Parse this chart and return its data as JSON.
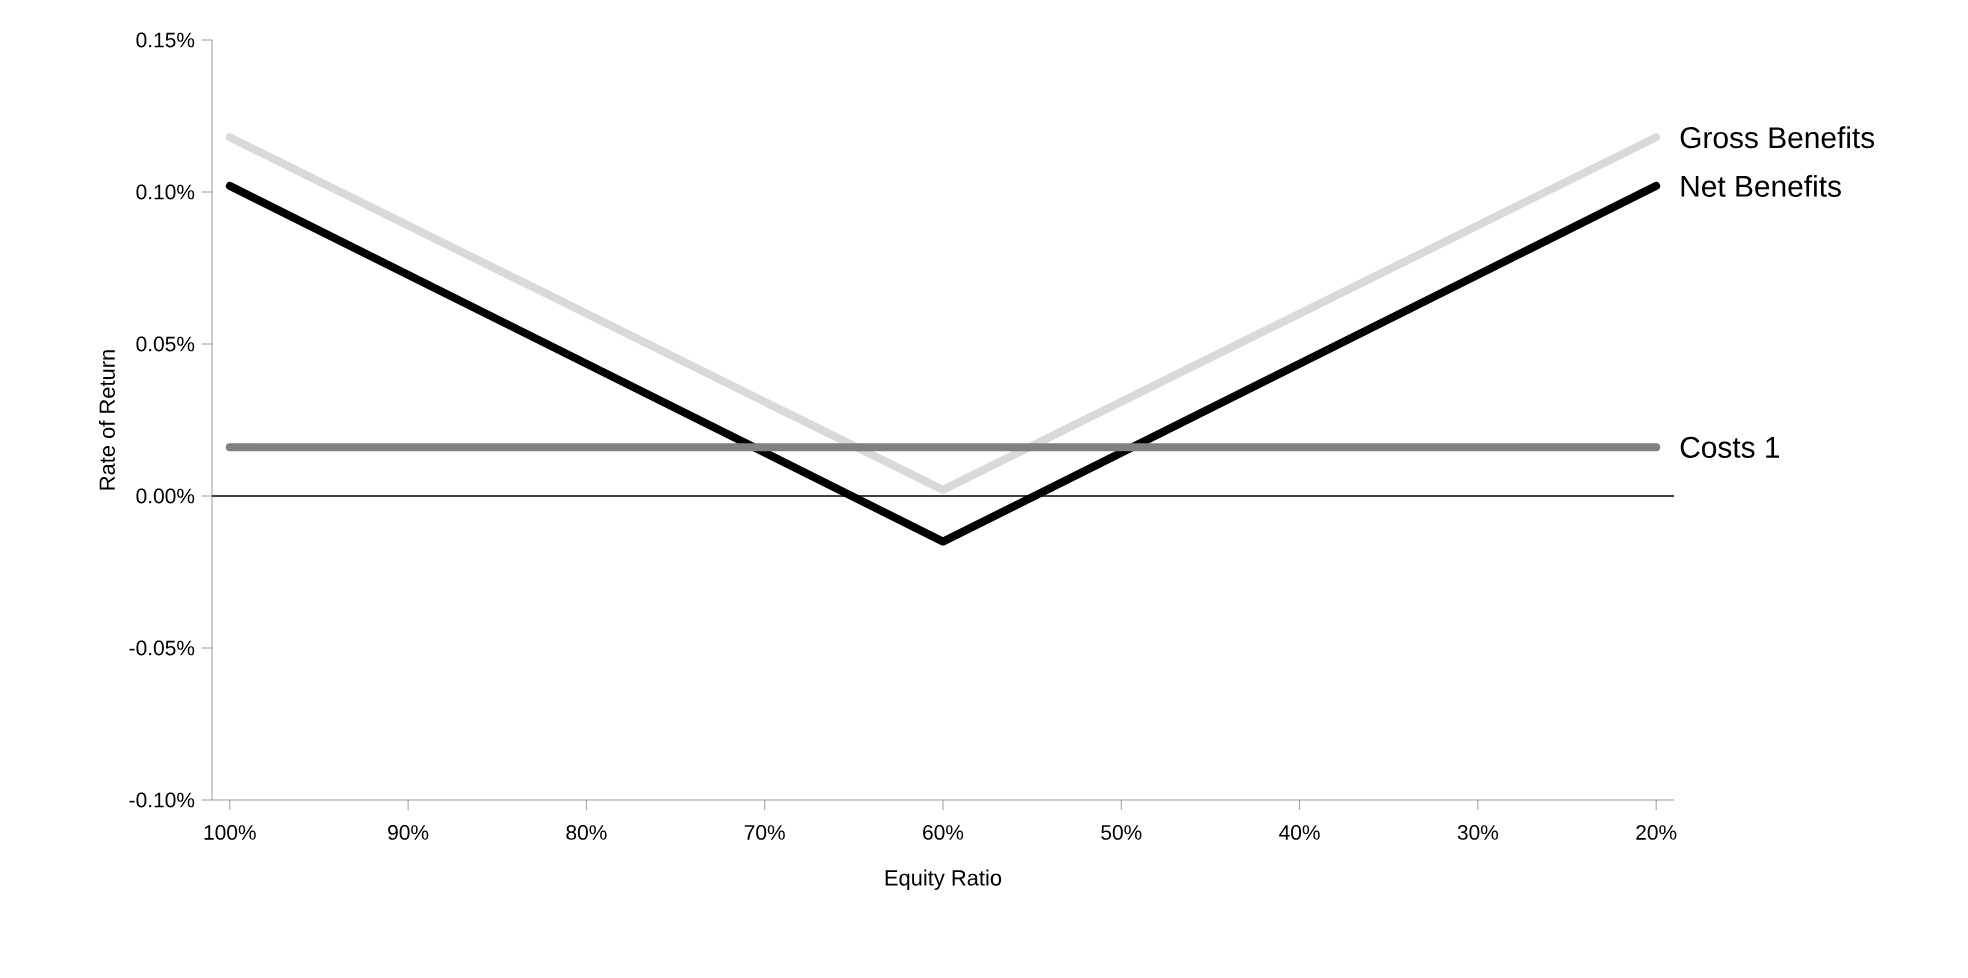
{
  "chart_data": {
    "type": "line",
    "xlabel": "Equity Ratio",
    "ylabel": "Rate of Return",
    "x": [
      100,
      60,
      20
    ],
    "xlim": [
      101,
      19
    ],
    "xticks": [
      {
        "value": 100,
        "label": "100%"
      },
      {
        "value": 90,
        "label": "90%"
      },
      {
        "value": 80,
        "label": "80%"
      },
      {
        "value": 70,
        "label": "70%"
      },
      {
        "value": 60,
        "label": "60%"
      },
      {
        "value": 50,
        "label": "50%"
      },
      {
        "value": 40,
        "label": "40%"
      },
      {
        "value": 30,
        "label": "30%"
      },
      {
        "value": 20,
        "label": "20%"
      }
    ],
    "ylim": [
      -0.1,
      0.15
    ],
    "yticks": [
      {
        "value": -0.1,
        "label": "-0.10%"
      },
      {
        "value": -0.05,
        "label": "-0.05%"
      },
      {
        "value": 0,
        "label": "0.00%"
      },
      {
        "value": 0.05,
        "label": "0.05%"
      },
      {
        "value": 0.1,
        "label": "0.10%"
      },
      {
        "value": 0.15,
        "label": "0.15%"
      }
    ],
    "series": [
      {
        "name": "Gross Benefits",
        "color": "#d9d9d9",
        "values": [
          0.118,
          0.002,
          0.118
        ]
      },
      {
        "name": "Net Benefits",
        "color": "#000000",
        "values": [
          0.102,
          -0.015,
          0.102
        ]
      },
      {
        "name": "Costs 1",
        "color": "#808080",
        "values": [
          0.016,
          0.016,
          0.016
        ]
      }
    ],
    "ref_lines": [
      {
        "axis": "y",
        "value": 0,
        "color": "#000000"
      }
    ],
    "grid": false,
    "legend": false,
    "marker": "none",
    "line_style": "solid"
  }
}
